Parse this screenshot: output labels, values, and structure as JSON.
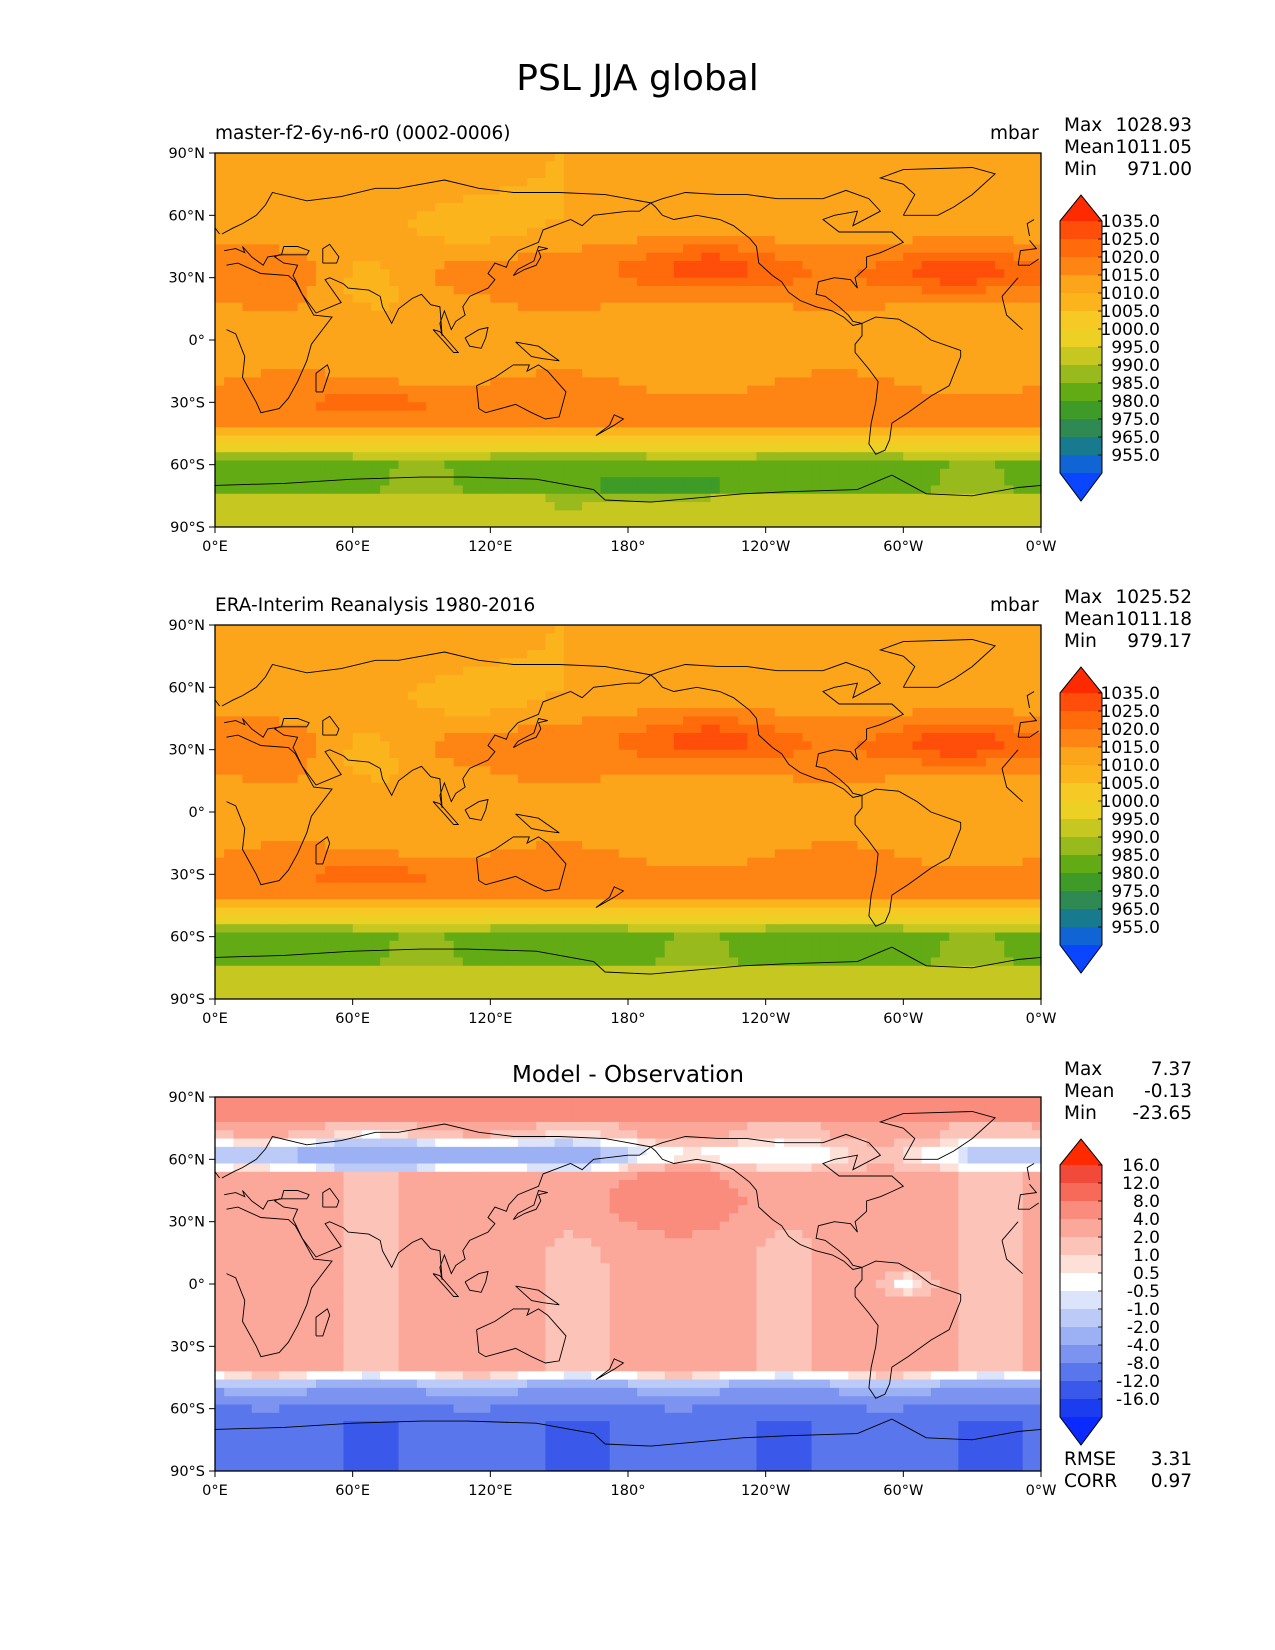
{
  "figure": {
    "title": "PSL JJA global"
  },
  "panels": [
    {
      "id": "model",
      "left_label": "master-f2-6y-n6-r0 (0002-0006)",
      "center_label": "",
      "units": "mbar",
      "stats": [
        {
          "key": "Max",
          "value": "1028.93"
        },
        {
          "key": "Mean",
          "value": "1011.05"
        },
        {
          "key": "Min",
          "value": "971.00"
        }
      ],
      "colorbar": {
        "levels": [
          "1035.0",
          "1025.0",
          "1020.0",
          "1015.0",
          "1010.0",
          "1005.0",
          "1000.0",
          "995.0",
          "990.0",
          "985.0",
          "980.0",
          "975.0",
          "965.0",
          "955.0"
        ],
        "colors": [
          "#ff2a00",
          "#ff4e0a",
          "#ff6a0a",
          "#fe8414",
          "#fca41a",
          "#fbb41c",
          "#f7c925",
          "#ecd124",
          "#c6c821",
          "#99ba1d",
          "#63ab15",
          "#3f9b27",
          "#2e8a52",
          "#187a8f",
          "#1064d4",
          "#0a46ff"
        ]
      }
    },
    {
      "id": "obs",
      "left_label": "ERA-Interim Reanalysis 1980-2016",
      "center_label": "",
      "units": "mbar",
      "stats": [
        {
          "key": "Max",
          "value": "1025.52"
        },
        {
          "key": "Mean",
          "value": "1011.18"
        },
        {
          "key": "Min",
          "value": "979.17"
        }
      ],
      "colorbar": {
        "levels": [
          "1035.0",
          "1025.0",
          "1020.0",
          "1015.0",
          "1010.0",
          "1005.0",
          "1000.0",
          "995.0",
          "990.0",
          "985.0",
          "980.0",
          "975.0",
          "965.0",
          "955.0"
        ],
        "colors": [
          "#ff2a00",
          "#ff4e0a",
          "#ff6a0a",
          "#fe8414",
          "#fca41a",
          "#fbb41c",
          "#f7c925",
          "#ecd124",
          "#c6c821",
          "#99ba1d",
          "#63ab15",
          "#3f9b27",
          "#2e8a52",
          "#187a8f",
          "#1064d4",
          "#0a46ff"
        ]
      }
    },
    {
      "id": "diff",
      "left_label": "",
      "center_label": "Model - Observation",
      "units": "",
      "stats": [
        {
          "key": "Max",
          "value": "7.37"
        },
        {
          "key": "Mean",
          "value": "-0.13"
        },
        {
          "key": "Min",
          "value": "-23.65"
        }
      ],
      "colorbar": {
        "levels": [
          "16.0",
          "12.0",
          "8.0",
          "4.0",
          "2.0",
          "1.0",
          "0.5",
          "-0.5",
          "-1.0",
          "-2.0",
          "-4.0",
          "-8.0",
          "-12.0",
          "-16.0"
        ],
        "colors": [
          "#ff2a00",
          "#f24a3a",
          "#f76a5a",
          "#f98c7c",
          "#fba89a",
          "#fcc4b8",
          "#fde0d8",
          "#ffffff",
          "#dce4fc",
          "#bccaf8",
          "#9cb0f4",
          "#7c94f0",
          "#5a76ec",
          "#3a58ea",
          "#1c3cf0",
          "#0a2aff"
        ]
      },
      "bottom_stats": [
        {
          "key": "RMSE",
          "value": "3.31"
        },
        {
          "key": "CORR",
          "value": "0.97"
        }
      ]
    }
  ],
  "axes": {
    "lat_ticks": [
      "90°N",
      "60°N",
      "30°N",
      "0°",
      "30°S",
      "60°S",
      "90°S"
    ],
    "lon_ticks": [
      "0°E",
      "60°E",
      "120°E",
      "180°",
      "120°W",
      "60°W",
      "0°W"
    ]
  }
}
